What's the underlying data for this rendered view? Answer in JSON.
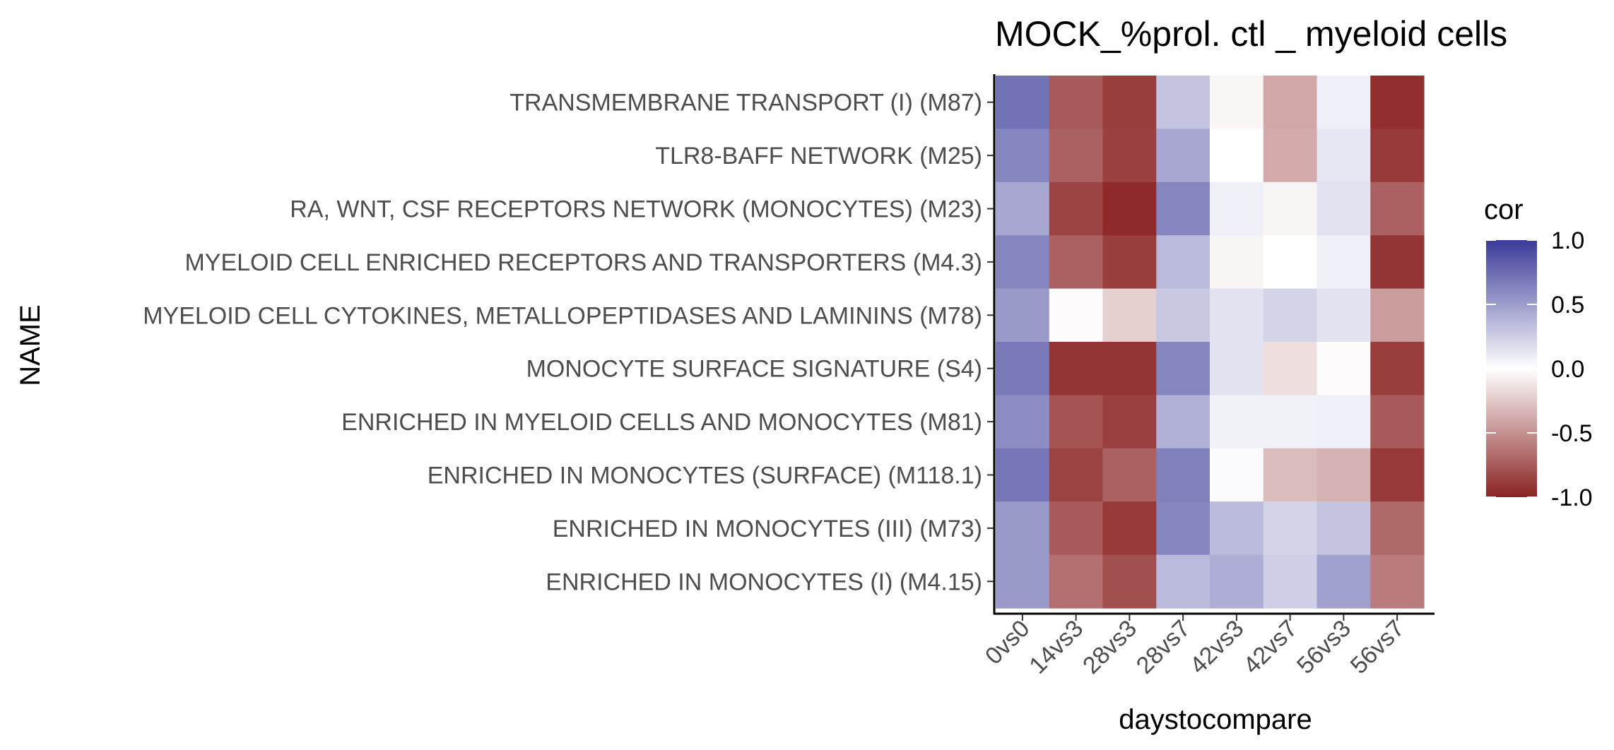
{
  "chart_data": {
    "type": "heatmap",
    "title": "MOCK_%prol. ctl _ myeloid cells",
    "xlabel": "daystocompare",
    "ylabel": "NAME",
    "x_categories": [
      "0vs0",
      "14vs3",
      "28vs3",
      "28vs7",
      "42vs3",
      "42vs7",
      "56vs3",
      "56vs7"
    ],
    "y_categories": [
      "TRANSMEMBRANE TRANSPORT (I) (M87)",
      "TLR8-BAFF NETWORK (M25)",
      "RA, WNT, CSF RECEPTORS NETWORK (MONOCYTES) (M23)",
      "MYELOID CELL ENRICHED RECEPTORS AND TRANSPORTERS (M4.3)",
      "MYELOID CELL CYTOKINES, METALLOPEPTIDASES AND LAMININS (M78)",
      "MONOCYTE SURFACE SIGNATURE (S4)",
      "ENRICHED IN MYELOID CELLS AND MONOCYTES (M81)",
      "ENRICHED IN MONOCYTES (SURFACE) (M118.1)",
      "ENRICHED IN MONOCYTES (III) (M73)",
      "ENRICHED IN MONOCYTES (I) (M4.15)"
    ],
    "values": [
      [
        0.72,
        -0.75,
        -0.88,
        0.3,
        -0.04,
        -0.4,
        0.08,
        -0.95
      ],
      [
        0.62,
        -0.72,
        -0.87,
        0.45,
        0.0,
        -0.38,
        0.12,
        -0.9
      ],
      [
        0.45,
        -0.85,
        -0.97,
        0.62,
        0.08,
        -0.05,
        0.15,
        -0.72
      ],
      [
        0.62,
        -0.72,
        -0.88,
        0.35,
        -0.05,
        0.0,
        0.08,
        -0.92
      ],
      [
        0.52,
        -0.02,
        -0.22,
        0.28,
        0.15,
        0.22,
        0.15,
        -0.45
      ],
      [
        0.68,
        -0.92,
        -0.92,
        0.62,
        0.15,
        -0.15,
        -0.02,
        -0.88
      ],
      [
        0.58,
        -0.78,
        -0.87,
        0.4,
        0.07,
        0.07,
        0.08,
        -0.75
      ],
      [
        0.7,
        -0.85,
        -0.72,
        0.65,
        0.02,
        -0.3,
        -0.35,
        -0.9
      ],
      [
        0.52,
        -0.75,
        -0.9,
        0.62,
        0.35,
        0.22,
        0.3,
        -0.68
      ],
      [
        0.52,
        -0.65,
        -0.8,
        0.35,
        0.42,
        0.25,
        0.48,
        -0.6
      ]
    ],
    "legend": {
      "title": "cor",
      "position": "right",
      "ticks": [
        1.0,
        0.5,
        0.0,
        -0.5,
        -1.0
      ],
      "tick_labels": [
        "1.0",
        "0.5",
        "0.0",
        "-0.5",
        "-1.0"
      ],
      "range": [
        -1,
        1
      ],
      "colors": {
        "low": "#8b2323",
        "mid": "#ffffff",
        "high": "#3b3b9a"
      }
    },
    "grid": false
  }
}
